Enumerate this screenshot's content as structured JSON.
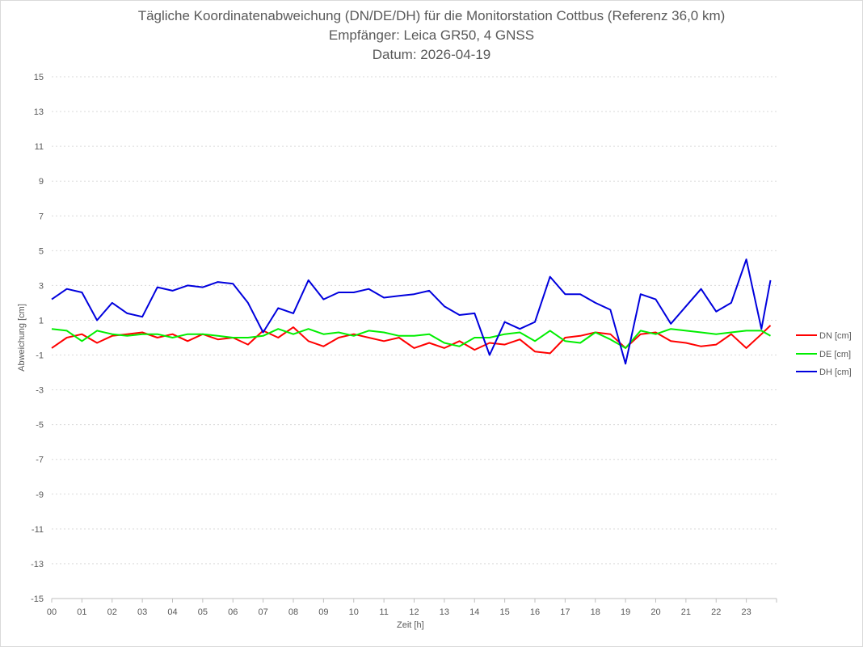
{
  "chart_data": {
    "type": "line",
    "title": "Tägliche Koordinatenabweichung (DN/DE/DH) für die Monitorstation Cottbus (Referenz 36,0 km)",
    "subtitle": "Empfänger: Leica GR50, 4 GNSS",
    "date_line": "Datum: 2026-04-19",
    "xlabel": "Zeit [h]",
    "ylabel": "Abweichung [cm]",
    "xlim": [
      0,
      24
    ],
    "ylim": [
      -15,
      15
    ],
    "x_ticks": [
      "00",
      "01",
      "02",
      "03",
      "04",
      "05",
      "06",
      "07",
      "08",
      "09",
      "10",
      "11",
      "12",
      "13",
      "14",
      "15",
      "16",
      "17",
      "18",
      "19",
      "20",
      "21",
      "22",
      "23"
    ],
    "y_ticks": [
      15,
      13,
      11,
      9,
      7,
      5,
      3,
      1,
      -1,
      -3,
      -5,
      -7,
      -9,
      -11,
      -13,
      -15
    ],
    "grid": "horizontal dotted",
    "legend": "right",
    "x": [
      0,
      0.5,
      1,
      1.5,
      2,
      2.5,
      3,
      3.5,
      4,
      4.5,
      5,
      5.5,
      6,
      6.5,
      7,
      7.5,
      8,
      8.5,
      9,
      9.5,
      10,
      10.5,
      11,
      11.5,
      12,
      12.5,
      13,
      13.5,
      14,
      14.5,
      15,
      15.5,
      16,
      16.5,
      17,
      17.5,
      18,
      18.5,
      19,
      19.5,
      20,
      20.5,
      21,
      21.5,
      22,
      22.5,
      23,
      23.5,
      23.8
    ],
    "series": [
      {
        "name": "DN [cm]",
        "color": "#ff0000",
        "values": [
          -0.6,
          0.0,
          0.2,
          -0.3,
          0.1,
          0.2,
          0.3,
          0.0,
          0.2,
          -0.2,
          0.2,
          -0.1,
          0.0,
          -0.4,
          0.4,
          0.0,
          0.6,
          -0.2,
          -0.5,
          0.0,
          0.2,
          0.0,
          -0.2,
          0.0,
          -0.6,
          -0.3,
          -0.6,
          -0.2,
          -0.7,
          -0.3,
          -0.4,
          -0.1,
          -0.8,
          -0.9,
          0.0,
          0.1,
          0.3,
          0.2,
          -0.6,
          0.2,
          0.3,
          -0.2,
          -0.3,
          -0.5,
          -0.4,
          0.2,
          -0.6,
          0.2,
          0.7
        ]
      },
      {
        "name": "DE [cm]",
        "color": "#00ee00",
        "values": [
          0.5,
          0.4,
          -0.2,
          0.4,
          0.2,
          0.1,
          0.2,
          0.2,
          0.0,
          0.2,
          0.2,
          0.1,
          0.0,
          0.0,
          0.1,
          0.5,
          0.2,
          0.5,
          0.2,
          0.3,
          0.1,
          0.4,
          0.3,
          0.1,
          0.1,
          0.2,
          -0.3,
          -0.5,
          0.0,
          0.0,
          0.2,
          0.3,
          -0.2,
          0.4,
          -0.2,
          -0.3,
          0.3,
          -0.1,
          -0.6,
          0.4,
          0.2,
          0.5,
          0.4,
          0.3,
          0.2,
          0.3,
          0.4,
          0.4,
          0.1
        ]
      },
      {
        "name": "DH [cm]",
        "color": "#0000dd",
        "values": [
          2.2,
          2.8,
          2.6,
          1.0,
          2.0,
          1.4,
          1.2,
          2.9,
          2.7,
          3.0,
          2.9,
          3.2,
          3.1,
          2.0,
          0.3,
          1.7,
          1.4,
          3.3,
          2.2,
          2.6,
          2.6,
          2.8,
          2.3,
          2.4,
          2.5,
          2.7,
          1.8,
          1.3,
          1.4,
          -1.0,
          0.9,
          0.5,
          0.9,
          3.5,
          2.5,
          2.5,
          2.0,
          1.6,
          -1.5,
          2.5,
          2.2,
          0.8,
          1.8,
          2.8,
          1.5,
          2.0,
          4.5,
          0.5,
          3.3
        ]
      }
    ]
  }
}
